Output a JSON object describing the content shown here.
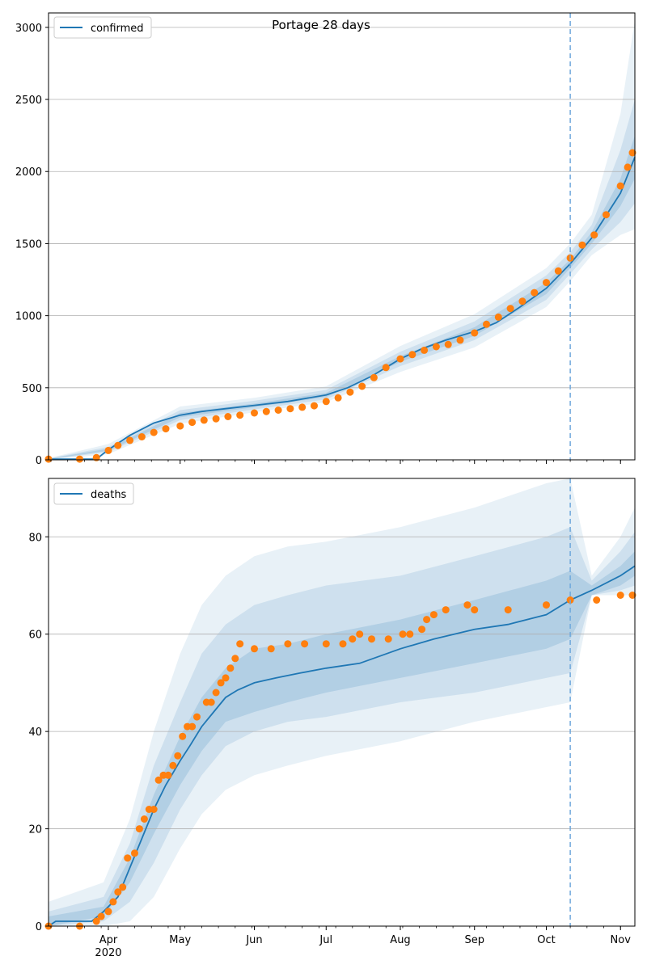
{
  "figure_title": "Portage 28 days",
  "chart_data": [
    {
      "type": "line",
      "name": "confirmed",
      "legend": [
        "confirmed"
      ],
      "legend_position": "upper-left",
      "grid": "horizontal",
      "ylim": [
        0,
        3100
      ],
      "yticks": [
        0,
        500,
        1000,
        1500,
        2000,
        2500,
        3000
      ],
      "xlim": [
        "2020-03-07",
        "2020-11-07"
      ],
      "forecast_start": "2020-10-11",
      "colors": {
        "model": "#1f77b4",
        "observed": "#ff7f0e",
        "band": "#1f77b4",
        "vline": "#6fa8dc"
      },
      "model_line": {
        "x": [
          "2020-03-07",
          "2020-03-27",
          "2020-04-01",
          "2020-04-10",
          "2020-04-20",
          "2020-05-01",
          "2020-05-10",
          "2020-05-20",
          "2020-06-01",
          "2020-06-15",
          "2020-07-01",
          "2020-07-10",
          "2020-07-20",
          "2020-08-01",
          "2020-08-10",
          "2020-08-20",
          "2020-09-01",
          "2020-09-10",
          "2020-09-20",
          "2020-10-01",
          "2020-10-11",
          "2020-10-20",
          "2020-11-01",
          "2020-11-07"
        ],
        "y": [
          5,
          5,
          70,
          170,
          255,
          310,
          335,
          355,
          378,
          405,
          450,
          500,
          580,
          700,
          770,
          830,
          890,
          950,
          1060,
          1190,
          1360,
          1540,
          1850,
          2100
        ]
      },
      "bands": [
        {
          "level": "outer",
          "x": [
            "2020-03-07",
            "2020-04-01",
            "2020-05-01",
            "2020-06-01",
            "2020-07-01",
            "2020-08-01",
            "2020-09-01",
            "2020-10-01",
            "2020-10-11",
            "2020-10-20",
            "2020-11-01",
            "2020-11-07"
          ],
          "lower": [
            0,
            40,
            250,
            330,
            400,
            610,
            780,
            1060,
            1240,
            1420,
            1560,
            1600
          ],
          "upper": [
            12,
            110,
            370,
            430,
            510,
            790,
            1010,
            1330,
            1500,
            1700,
            2400,
            3050
          ]
        },
        {
          "level": "middle",
          "x": [
            "2020-03-07",
            "2020-04-01",
            "2020-05-01",
            "2020-06-01",
            "2020-07-01",
            "2020-08-01",
            "2020-09-01",
            "2020-10-01",
            "2020-10-11",
            "2020-10-20",
            "2020-11-01",
            "2020-11-07"
          ],
          "lower": [
            2,
            55,
            275,
            350,
            420,
            650,
            830,
            1110,
            1290,
            1460,
            1650,
            1780
          ],
          "upper": [
            9,
            90,
            345,
            410,
            485,
            750,
            960,
            1280,
            1440,
            1630,
            2150,
            2500
          ]
        },
        {
          "level": "inner",
          "x": [
            "2020-03-07",
            "2020-04-01",
            "2020-05-01",
            "2020-06-01",
            "2020-07-01",
            "2020-08-01",
            "2020-09-01",
            "2020-10-01",
            "2020-10-11",
            "2020-10-20",
            "2020-11-01",
            "2020-11-07"
          ],
          "lower": [
            4,
            63,
            295,
            365,
            435,
            680,
            860,
            1150,
            1330,
            1500,
            1760,
            1950
          ],
          "upper": [
            7,
            78,
            325,
            390,
            465,
            720,
            920,
            1230,
            1390,
            1580,
            1950,
            2250
          ]
        }
      ],
      "observed": {
        "x": [
          "2020-03-07",
          "2020-03-20",
          "2020-03-27",
          "2020-04-01",
          "2020-04-05",
          "2020-04-10",
          "2020-04-15",
          "2020-04-20",
          "2020-04-25",
          "2020-05-01",
          "2020-05-06",
          "2020-05-11",
          "2020-05-16",
          "2020-05-21",
          "2020-05-26",
          "2020-06-01",
          "2020-06-06",
          "2020-06-11",
          "2020-06-16",
          "2020-06-21",
          "2020-06-26",
          "2020-07-01",
          "2020-07-06",
          "2020-07-11",
          "2020-07-16",
          "2020-07-21",
          "2020-07-26",
          "2020-08-01",
          "2020-08-06",
          "2020-08-11",
          "2020-08-16",
          "2020-08-21",
          "2020-08-26",
          "2020-09-01",
          "2020-09-06",
          "2020-09-11",
          "2020-09-16",
          "2020-09-21",
          "2020-09-26",
          "2020-10-01",
          "2020-10-06",
          "2020-10-11",
          "2020-10-16",
          "2020-10-21",
          "2020-10-26",
          "2020-11-01",
          "2020-11-04",
          "2020-11-06"
        ],
        "y": [
          5,
          5,
          15,
          65,
          100,
          135,
          160,
          190,
          215,
          235,
          260,
          275,
          285,
          300,
          310,
          325,
          335,
          345,
          355,
          365,
          375,
          405,
          430,
          470,
          510,
          570,
          640,
          700,
          730,
          760,
          785,
          800,
          830,
          880,
          940,
          990,
          1050,
          1100,
          1160,
          1230,
          1310,
          1400,
          1490,
          1560,
          1700,
          1900,
          2030,
          2130
        ]
      }
    },
    {
      "type": "line",
      "name": "deaths",
      "legend": [
        "deaths"
      ],
      "legend_position": "upper-left",
      "grid": "horizontal",
      "ylim": [
        0,
        92
      ],
      "yticks": [
        0,
        20,
        40,
        60,
        80
      ],
      "xlim": [
        "2020-03-07",
        "2020-11-07"
      ],
      "forecast_start": "2020-10-11",
      "xticks": [
        "2020-04-01",
        "2020-05-01",
        "2020-06-01",
        "2020-07-01",
        "2020-08-01",
        "2020-09-01",
        "2020-10-01",
        "2020-11-01"
      ],
      "xtick_labels": [
        "Apr",
        "May",
        "Jun",
        "Jul",
        "Aug",
        "Sep",
        "Oct",
        "Nov"
      ],
      "xtick_year_label": "2020",
      "colors": {
        "model": "#1f77b4",
        "observed": "#ff7f0e",
        "band": "#1f77b4",
        "vline": "#6fa8dc"
      },
      "model_line": {
        "x": [
          "2020-03-07",
          "2020-03-10",
          "2020-03-25",
          "2020-03-30",
          "2020-04-05",
          "2020-04-10",
          "2020-04-15",
          "2020-04-20",
          "2020-04-25",
          "2020-05-01",
          "2020-05-05",
          "2020-05-10",
          "2020-05-15",
          "2020-05-20",
          "2020-05-25",
          "2020-06-01",
          "2020-06-10",
          "2020-06-20",
          "2020-07-01",
          "2020-07-15",
          "2020-08-01",
          "2020-08-15",
          "2020-09-01",
          "2020-09-15",
          "2020-10-01",
          "2020-10-11",
          "2020-10-20",
          "2020-11-01",
          "2020-11-07"
        ],
        "y": [
          0,
          1,
          1,
          3,
          6,
          12,
          18,
          24,
          29,
          34,
          37,
          41,
          44,
          47,
          48.5,
          50,
          51,
          52,
          53,
          54,
          57,
          59,
          61,
          62,
          64,
          67,
          69,
          72,
          74
        ]
      },
      "bands": [
        {
          "level": "outer",
          "x": [
            "2020-03-07",
            "2020-03-30",
            "2020-04-10",
            "2020-04-20",
            "2020-05-01",
            "2020-05-10",
            "2020-05-20",
            "2020-06-01",
            "2020-06-15",
            "2020-07-01",
            "2020-08-01",
            "2020-09-01",
            "2020-10-01",
            "2020-10-11",
            "2020-10-20",
            "2020-11-01",
            "2020-11-07"
          ],
          "lower": [
            0,
            0,
            1,
            6,
            16,
            23,
            28,
            31,
            33,
            35,
            38,
            42,
            45,
            46,
            68,
            68,
            68
          ],
          "upper": [
            5,
            9,
            22,
            40,
            56,
            66,
            72,
            76,
            78,
            79,
            82,
            86,
            91,
            92,
            72,
            80,
            86
          ]
        },
        {
          "level": "middle",
          "x": [
            "2020-03-07",
            "2020-03-30",
            "2020-04-10",
            "2020-04-20",
            "2020-05-01",
            "2020-05-10",
            "2020-05-20",
            "2020-06-01",
            "2020-06-15",
            "2020-07-01",
            "2020-08-01",
            "2020-09-01",
            "2020-10-01",
            "2020-10-11",
            "2020-10-20",
            "2020-11-01",
            "2020-11-07"
          ],
          "lower": [
            0,
            1,
            5,
            13,
            24,
            31,
            37,
            40,
            42,
            43,
            46,
            48,
            51,
            52,
            68,
            69,
            70
          ],
          "upper": [
            3,
            6,
            17,
            33,
            46,
            56,
            62,
            66,
            68,
            70,
            72,
            76,
            80,
            82,
            71,
            77,
            81
          ]
        },
        {
          "level": "inner",
          "x": [
            "2020-03-07",
            "2020-03-30",
            "2020-04-10",
            "2020-04-20",
            "2020-05-01",
            "2020-05-10",
            "2020-05-20",
            "2020-06-01",
            "2020-06-15",
            "2020-07-01",
            "2020-08-01",
            "2020-09-01",
            "2020-10-01",
            "2020-10-11",
            "2020-10-20",
            "2020-11-01",
            "2020-11-07"
          ],
          "lower": [
            0,
            2,
            9,
            19,
            29,
            36,
            42,
            44,
            46,
            48,
            51,
            54,
            57,
            59,
            68,
            70,
            72
          ],
          "upper": [
            2,
            4,
            14,
            27,
            39,
            47,
            53,
            57,
            58,
            60,
            63,
            67,
            71,
            73,
            70,
            74,
            77
          ]
        }
      ],
      "observed": {
        "x": [
          "2020-03-07",
          "2020-03-20",
          "2020-03-27",
          "2020-03-29",
          "2020-04-01",
          "2020-04-03",
          "2020-04-05",
          "2020-04-07",
          "2020-04-09",
          "2020-04-12",
          "2020-04-14",
          "2020-04-16",
          "2020-04-18",
          "2020-04-20",
          "2020-04-22",
          "2020-04-24",
          "2020-04-26",
          "2020-04-28",
          "2020-04-30",
          "2020-05-02",
          "2020-05-04",
          "2020-05-06",
          "2020-05-08",
          "2020-05-12",
          "2020-05-14",
          "2020-05-16",
          "2020-05-18",
          "2020-05-20",
          "2020-05-22",
          "2020-05-24",
          "2020-05-26",
          "2020-06-01",
          "2020-06-08",
          "2020-06-15",
          "2020-06-22",
          "2020-07-01",
          "2020-07-08",
          "2020-07-12",
          "2020-07-15",
          "2020-07-20",
          "2020-07-27",
          "2020-08-02",
          "2020-08-05",
          "2020-08-10",
          "2020-08-12",
          "2020-08-15",
          "2020-08-20",
          "2020-08-29",
          "2020-09-01",
          "2020-09-15",
          "2020-10-01",
          "2020-10-11",
          "2020-10-22",
          "2020-11-01",
          "2020-11-06"
        ],
        "y": [
          0,
          0,
          1,
          2,
          3,
          5,
          7,
          8,
          14,
          15,
          20,
          22,
          24,
          24,
          30,
          31,
          31,
          33,
          35,
          39,
          41,
          41,
          43,
          46,
          46,
          48,
          50,
          51,
          53,
          55,
          58,
          57,
          57,
          58,
          58,
          58,
          58,
          59,
          60,
          59,
          59,
          60,
          60,
          61,
          63,
          64,
          65,
          66,
          65,
          65,
          66,
          67,
          67,
          68,
          68
        ]
      }
    }
  ]
}
